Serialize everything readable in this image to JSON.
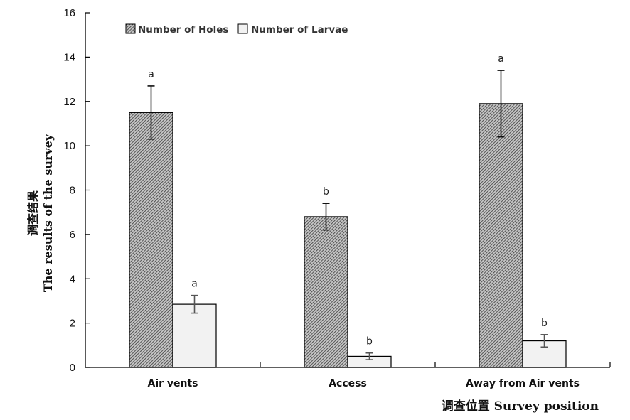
{
  "chart_data": {
    "type": "bar",
    "categories": [
      "Air vents",
      "Access",
      "Away from Air vents"
    ],
    "series": [
      {
        "name": "Number of Holes",
        "values": [
          11.5,
          6.8,
          11.9
        ],
        "errors": [
          1.2,
          0.6,
          1.5
        ],
        "significance": [
          "a",
          "b",
          "a"
        ],
        "fill": "hatched-dark"
      },
      {
        "name": "Number of Larvae",
        "values": [
          2.85,
          0.5,
          1.2
        ],
        "errors": [
          0.4,
          0.15,
          0.28
        ],
        "significance": [
          "a",
          "b",
          "b"
        ],
        "fill": "light"
      }
    ],
    "ylabel_cn": "调查结果",
    "ylabel": "The results of the survey",
    "xlabel": "调查位置  Survey position",
    "ylim": [
      0,
      16
    ],
    "yticks": [
      0,
      2,
      4,
      6,
      8,
      10,
      12,
      14,
      16
    ],
    "grid": false,
    "legend_position": "top-left"
  },
  "colors": {
    "holes_fill": "#8a8a8a",
    "larvae_fill": "#f2f2f2",
    "axis": "#000000"
  }
}
